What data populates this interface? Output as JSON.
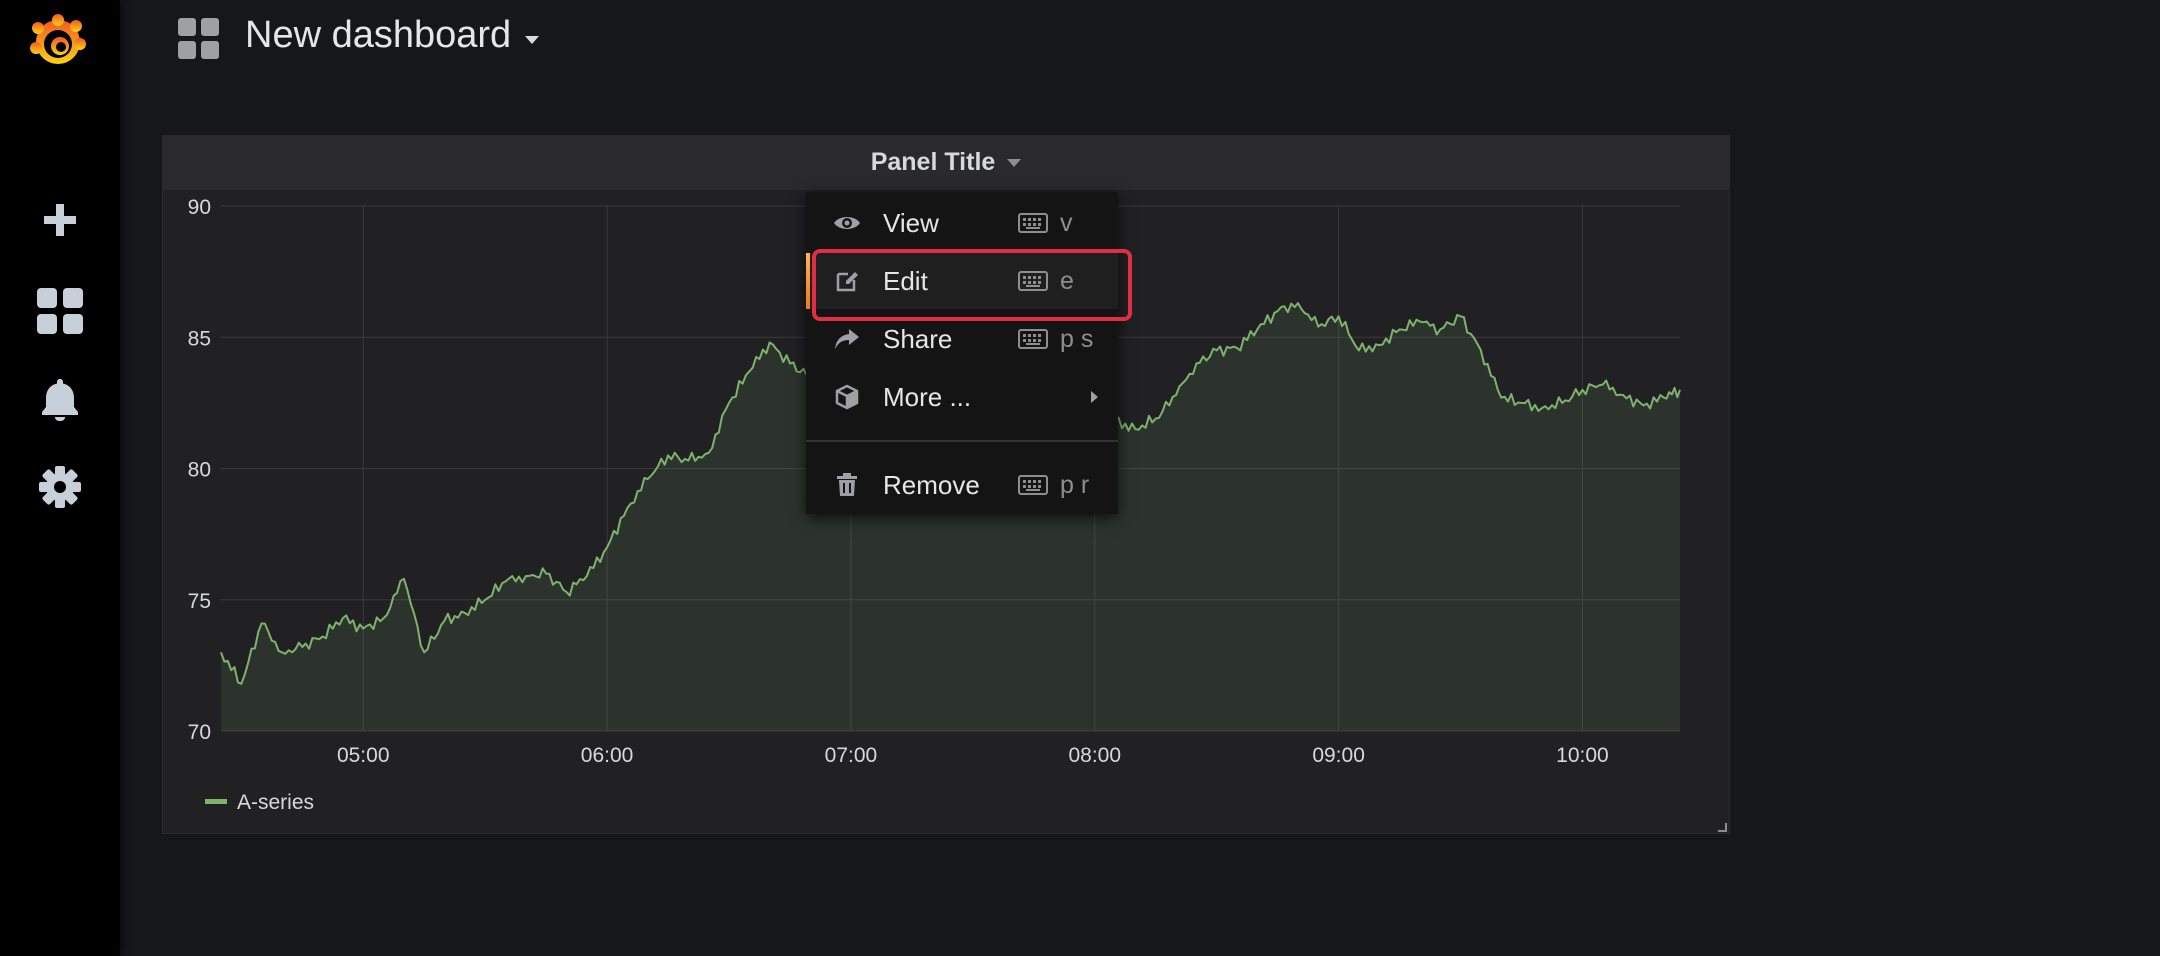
{
  "app": {
    "dashboard_title": "New dashboard"
  },
  "sidebar": {
    "items": [
      {
        "name": "logo",
        "icon": "grafana-logo-icon"
      },
      {
        "name": "create",
        "icon": "plus-icon"
      },
      {
        "name": "dashboards",
        "icon": "grid-icon"
      },
      {
        "name": "alerting",
        "icon": "bell-icon"
      },
      {
        "name": "configuration",
        "icon": "gear-icon"
      }
    ]
  },
  "panel": {
    "title": "Panel Title",
    "legend": "A-series"
  },
  "menu": {
    "items": [
      {
        "label": "View",
        "shortcut": "v",
        "icon": "eye-icon"
      },
      {
        "label": "Edit",
        "shortcut": "e",
        "icon": "edit-icon"
      },
      {
        "label": "Share",
        "shortcut": "p s",
        "icon": "share-icon"
      },
      {
        "label": "More ...",
        "shortcut": "",
        "icon": "cube-icon"
      },
      {
        "label": "Remove",
        "shortcut": "p r",
        "icon": "trash-icon"
      }
    ]
  },
  "colors": {
    "series": "#7eb26d",
    "accent": "#eb7b18",
    "highlight": "#e02f44"
  },
  "chart_data": {
    "type": "area",
    "title": "Panel Title",
    "xlabel": "",
    "ylabel": "",
    "ylim": [
      70,
      90
    ],
    "y_ticks": [
      90,
      85,
      80,
      75,
      70
    ],
    "x_ticks": [
      "05:00",
      "06:00",
      "07:00",
      "08:00",
      "09:00",
      "10:00"
    ],
    "legend_position": "bottom-left",
    "grid": true,
    "series": [
      {
        "name": "A-series",
        "x": [
          "04:25",
          "04:30",
          "04:35",
          "04:40",
          "04:45",
          "04:50",
          "04:55",
          "05:00",
          "05:05",
          "05:10",
          "05:15",
          "05:20",
          "05:25",
          "05:30",
          "05:35",
          "05:40",
          "05:45",
          "05:50",
          "05:55",
          "06:00",
          "06:05",
          "06:10",
          "06:15",
          "06:20",
          "06:25",
          "06:30",
          "06:35",
          "06:40",
          "06:45",
          "06:50",
          "06:55",
          "07:00",
          "07:05",
          "07:10",
          "07:15",
          "07:20",
          "07:25",
          "07:30",
          "07:35",
          "07:40",
          "07:45",
          "07:50",
          "07:55",
          "08:00",
          "08:05",
          "08:10",
          "08:15",
          "08:20",
          "08:25",
          "08:30",
          "08:35",
          "08:40",
          "08:45",
          "08:50",
          "08:55",
          "09:00",
          "09:05",
          "09:10",
          "09:15",
          "09:20",
          "09:25",
          "09:30",
          "09:35",
          "09:40",
          "09:45",
          "09:50",
          "09:55",
          "10:00",
          "10:05",
          "10:10",
          "10:15",
          "10:20",
          "10:24"
        ],
        "values": [
          73.0,
          71.8,
          74.1,
          73.0,
          73.2,
          73.6,
          74.3,
          73.9,
          74.3,
          75.8,
          73.0,
          74.2,
          74.5,
          75.0,
          75.7,
          75.9,
          76.0,
          75.3,
          75.9,
          77.0,
          78.5,
          79.6,
          80.5,
          80.3,
          80.6,
          82.5,
          83.7,
          84.8,
          84.0,
          83.5,
          83.0,
          83.0,
          82.5,
          82.3,
          82.4,
          82.6,
          82.4,
          82.5,
          82.5,
          82.4,
          82.0,
          82.6,
          82.4,
          82.3,
          81.8,
          81.5,
          81.9,
          82.8,
          84.0,
          84.5,
          84.6,
          85.3,
          86.0,
          86.3,
          85.4,
          85.8,
          84.5,
          84.7,
          85.3,
          85.6,
          85.3,
          85.8,
          84.5,
          82.7,
          82.5,
          82.3,
          82.5,
          83.0,
          83.2,
          82.8,
          82.4,
          82.7,
          83.0
        ]
      }
    ]
  }
}
